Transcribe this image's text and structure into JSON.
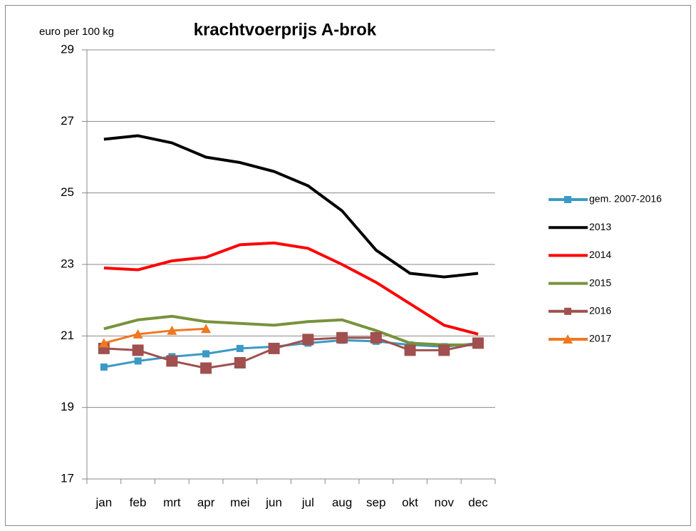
{
  "chart_data": {
    "type": "line",
    "title": "krachtvoerprijs A-brok",
    "y_label": "euro per 100 kg",
    "categories": [
      "jan",
      "feb",
      "mrt",
      "apr",
      "mei",
      "jun",
      "jul",
      "aug",
      "sep",
      "okt",
      "nov",
      "dec"
    ],
    "ylim": [
      17,
      29
    ],
    "yticks": [
      17,
      19,
      21,
      23,
      25,
      27,
      29
    ],
    "grid": true,
    "series": [
      {
        "name": "gem. 2007-2016",
        "color": "#3a9ac4",
        "marker": "square",
        "values": [
          20.13,
          20.3,
          20.42,
          20.5,
          20.65,
          20.7,
          20.8,
          20.88,
          20.85,
          20.75,
          20.7,
          20.8
        ]
      },
      {
        "name": "2013",
        "color": "#000000",
        "values": [
          26.5,
          26.6,
          26.4,
          26.0,
          25.85,
          25.6,
          25.2,
          24.5,
          23.4,
          22.75,
          22.65,
          22.75
        ]
      },
      {
        "name": "2014",
        "color": "#ff0000",
        "values": [
          22.9,
          22.85,
          23.1,
          23.2,
          23.55,
          23.6,
          23.45,
          23.0,
          22.5,
          21.9,
          21.3,
          21.05
        ]
      },
      {
        "name": "2015",
        "color": "#77933c",
        "values": [
          21.2,
          21.45,
          21.55,
          21.4,
          21.35,
          21.3,
          21.4,
          21.45,
          21.15,
          20.8,
          20.75,
          20.75
        ]
      },
      {
        "name": "2016",
        "color": "#a0504e",
        "marker": "bigsquare",
        "values": [
          20.65,
          20.6,
          20.3,
          20.1,
          20.25,
          20.65,
          20.9,
          20.95,
          20.95,
          20.6,
          20.6,
          20.8
        ]
      },
      {
        "name": "2017",
        "color": "#f07820",
        "marker": "triangle",
        "values": [
          20.8,
          21.05,
          21.15,
          21.2,
          null,
          null,
          null,
          null,
          null,
          null,
          null,
          null
        ]
      }
    ],
    "legend": "right"
  }
}
